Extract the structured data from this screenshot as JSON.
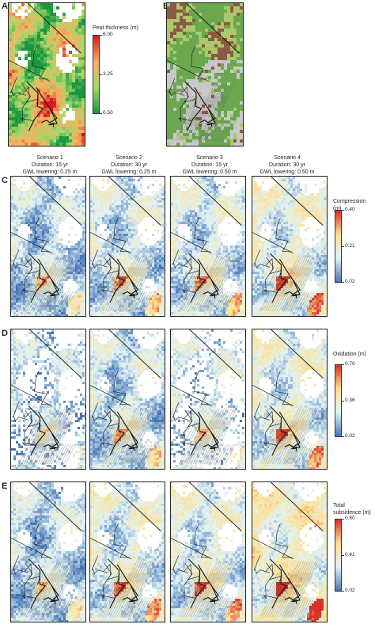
{
  "panels": {
    "a": "A",
    "b": "B",
    "c": "C",
    "d": "D",
    "e": "E"
  },
  "peat": {
    "title": "Peat thickness (m)",
    "ticks": [
      "6.00",
      "3.25",
      "0.50"
    ],
    "colors": [
      "#d7191c",
      "#fdae61",
      "#a6d96a",
      "#1a9641"
    ]
  },
  "scenarios": [
    {
      "name": "Scenario 1",
      "duration": "Duration: 15 yr",
      "gwl": "GWL lowering: 0.25 m"
    },
    {
      "name": "Scenario 2",
      "duration": "Duration: 30 yr",
      "gwl": "GWL lowering: 0.25 m"
    },
    {
      "name": "Scenario 3",
      "duration": "Duration: 15 yr",
      "gwl": "GWL lowering: 0.50 m"
    },
    {
      "name": "Scenario 4",
      "duration": "Duration: 30 yr",
      "gwl": "GWL lowering: 0.50 m"
    }
  ],
  "compression": {
    "title": "Compression (m)",
    "ticks": [
      "0.40",
      "0.21",
      "0.02"
    ],
    "colors": [
      "#d73027",
      "#fee090",
      "#e0f3f8",
      "#4575b4"
    ]
  },
  "oxidation": {
    "title": "Oxidation (m)",
    "ticks": [
      "0.70",
      "0.36",
      "0.02"
    ],
    "colors": [
      "#d73027",
      "#fee090",
      "#e0f3f8",
      "#4575b4"
    ]
  },
  "subsidence": {
    "title": "Total subsidence (m)",
    "ticks": [
      "0.80",
      "0.41",
      "0.02"
    ],
    "colors": [
      "#d73027",
      "#fee090",
      "#e0f3f8",
      "#4575b4"
    ]
  },
  "landuse_colors": [
    "#6aa84f",
    "#a9c96a",
    "#8b5a44",
    "#c8c8c8"
  ]
}
